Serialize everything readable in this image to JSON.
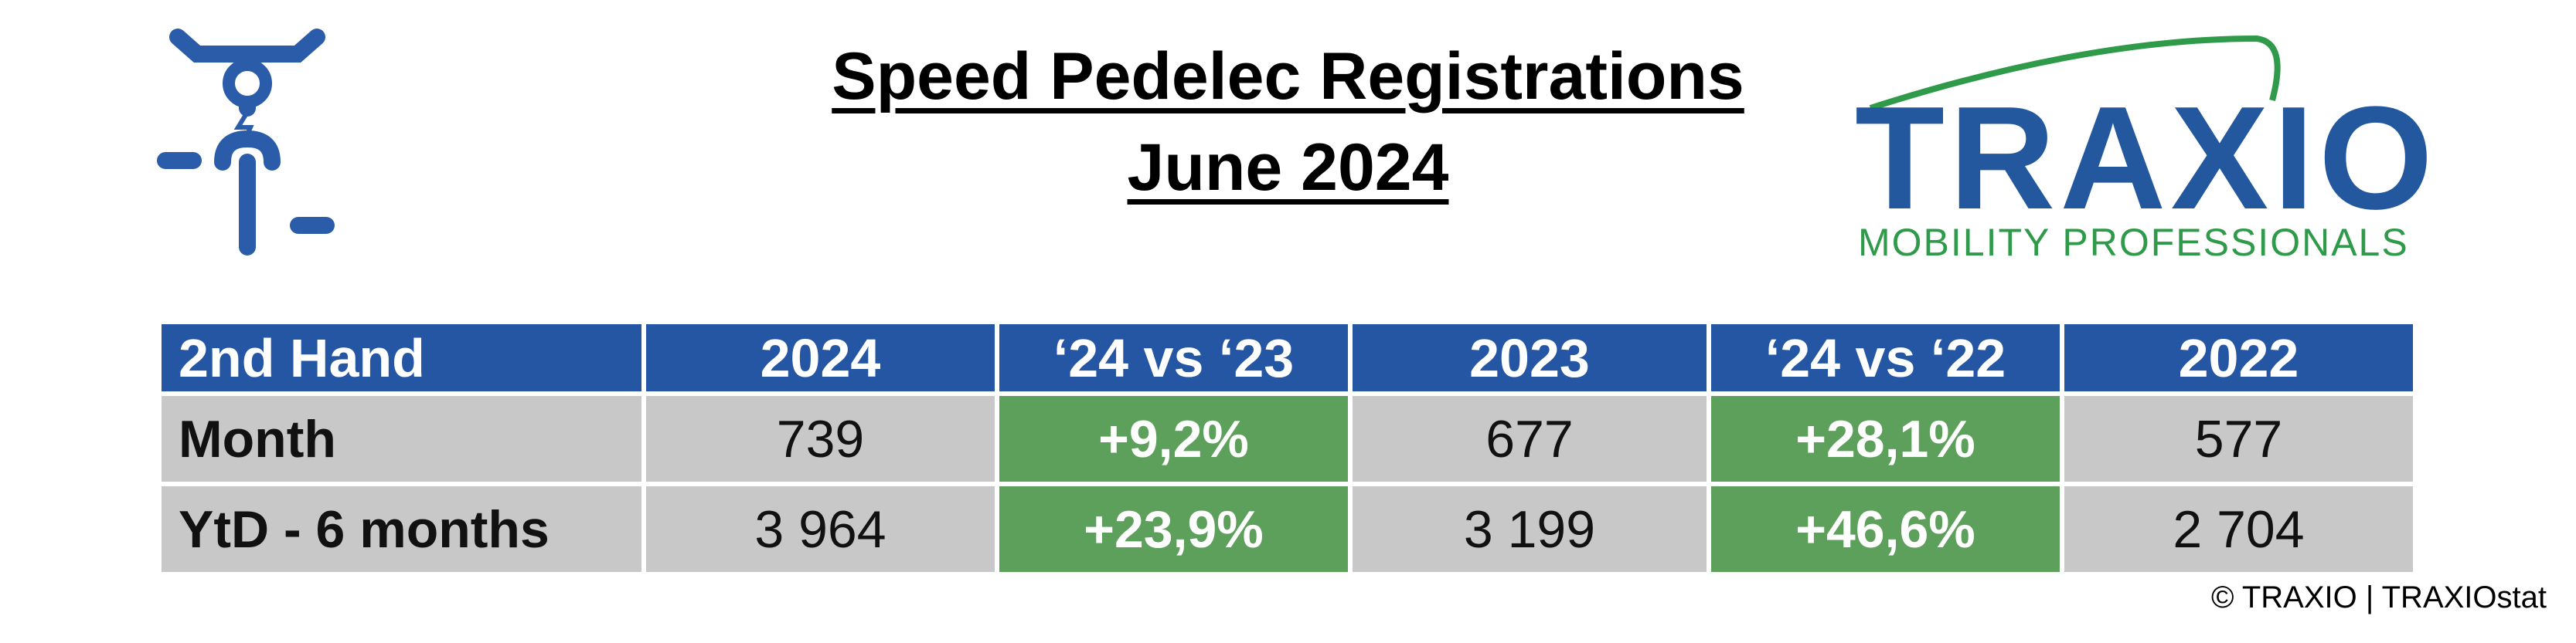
{
  "header": {
    "title_line1": "Speed Pedelec Registrations",
    "title_line2": "June 2024"
  },
  "logo": {
    "name": "TRAXIO",
    "tagline": "MOBILITY PROFESSIONALS"
  },
  "table": {
    "header": [
      "2nd Hand",
      "2024",
      "‘24 vs ‘23",
      "2023",
      "‘24 vs ‘22",
      "2022"
    ],
    "rows": [
      [
        "Month",
        "739",
        "+9,2%",
        "677",
        "+28,1%",
        "577"
      ],
      [
        "YtD - 6 months",
        "3 964",
        "+23,9%",
        "3 199",
        "+46,6%",
        "2 704"
      ]
    ]
  },
  "footer": "© TRAXIO | TRAXIOstat"
}
